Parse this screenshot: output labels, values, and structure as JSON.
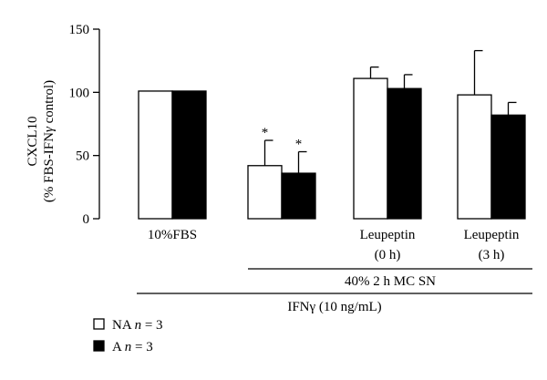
{
  "chart_data": {
    "type": "bar",
    "ylabel_line1": "CXCL10",
    "ylabel_line2_pre": "(% FBS-IFN",
    "ylabel_line2_gamma": "γ",
    "ylabel_line2_post": " control)",
    "ylim": [
      0,
      150
    ],
    "yticks": [
      "0",
      "50",
      "100",
      "150"
    ],
    "ytick_values": [
      0,
      50,
      100,
      150
    ],
    "groups": [
      {
        "label1": "10%FBS",
        "label2": ""
      },
      {
        "label1": "",
        "label2": ""
      },
      {
        "label1": "Leupeptin",
        "label2": "(0 h)"
      },
      {
        "label1": "Leupeptin",
        "label2": "(3 h)"
      }
    ],
    "series": [
      {
        "name": "NA",
        "fill": "#ffffff",
        "values": [
          101,
          42,
          111,
          98
        ],
        "errors": [
          0,
          20,
          9,
          35
        ]
      },
      {
        "name": "A",
        "fill": "#000000",
        "values": [
          101,
          36,
          103,
          82
        ],
        "errors": [
          0,
          17,
          11,
          10
        ]
      }
    ],
    "annotations": [
      "*",
      "*"
    ],
    "conditions": {
      "mc_sn": "40% 2 h MC SN",
      "ifn_greek": "IFNγ",
      "ifn_rest": " (10 ng/mL)"
    },
    "legend": [
      {
        "label": "NA",
        "n_italic": "n",
        "n_rest": " = 3",
        "fill": "#ffffff"
      },
      {
        "label": "A",
        "n_italic": "n",
        "n_rest": " = 3",
        "fill": "#000000"
      }
    ]
  }
}
